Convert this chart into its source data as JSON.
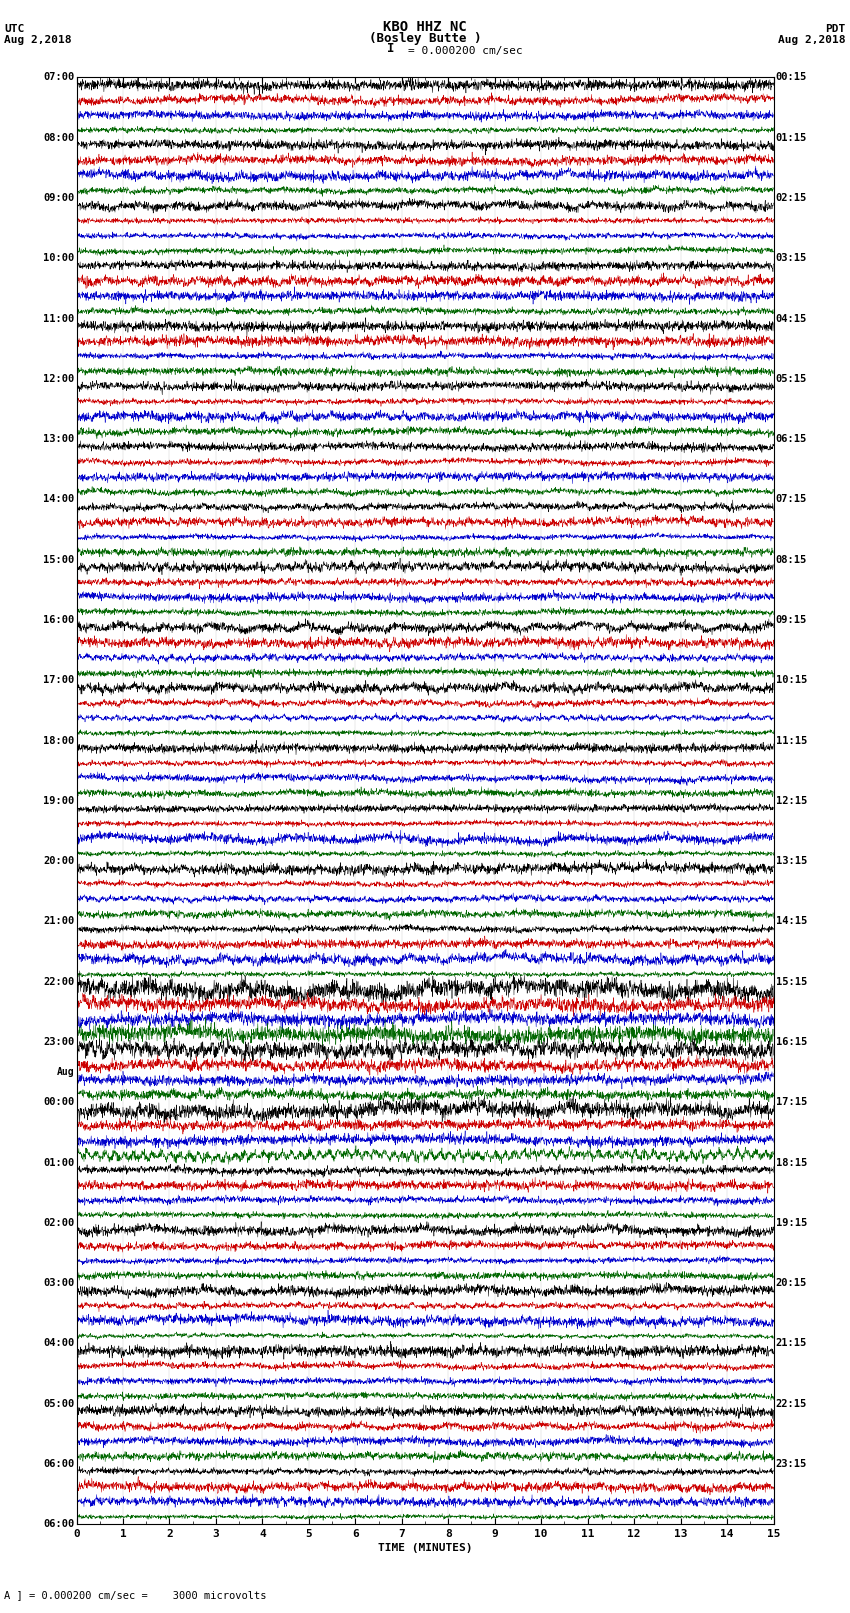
{
  "title_line1": "KBO HHZ NC",
  "title_line2": "(Bosley Butte )",
  "title_line3": "I = 0.000200 cm/sec",
  "left_header_line1": "UTC",
  "left_header_line2": "Aug 2,2018",
  "right_header_line1": "PDT",
  "right_header_line2": "Aug 2,2018",
  "xlabel": "TIME (MINUTES)",
  "scale_label": "= 0.000200 cm/sec =    3000 microvolts",
  "xlim": [
    0,
    15
  ],
  "xticks": [
    0,
    1,
    2,
    3,
    4,
    5,
    6,
    7,
    8,
    9,
    10,
    11,
    12,
    13,
    14,
    15
  ],
  "background_color": "#ffffff",
  "trace_colors": [
    "#000000",
    "#cc0000",
    "#0000cc",
    "#006600"
  ],
  "figsize": [
    8.5,
    16.13
  ],
  "dpi": 100,
  "left_times": [
    "07:00",
    "08:00",
    "09:00",
    "10:00",
    "11:00",
    "12:00",
    "13:00",
    "14:00",
    "15:00",
    "16:00",
    "17:00",
    "18:00",
    "19:00",
    "20:00",
    "21:00",
    "22:00",
    "23:00",
    "00:00",
    "01:00",
    "02:00",
    "03:00",
    "04:00",
    "05:00",
    "06:00"
  ],
  "right_times": [
    "00:15",
    "01:15",
    "02:15",
    "03:15",
    "04:15",
    "05:15",
    "06:15",
    "07:15",
    "08:15",
    "09:15",
    "10:15",
    "11:15",
    "12:15",
    "13:15",
    "14:15",
    "15:15",
    "16:15",
    "17:15",
    "18:15",
    "19:15",
    "20:15",
    "21:15",
    "22:15",
    "23:15"
  ],
  "n_hours": 24,
  "traces_per_hour": 4,
  "seed": 12345,
  "amp_base": 0.12,
  "amp_scales": [
    1.0,
    0.9,
    0.9,
    0.7
  ]
}
